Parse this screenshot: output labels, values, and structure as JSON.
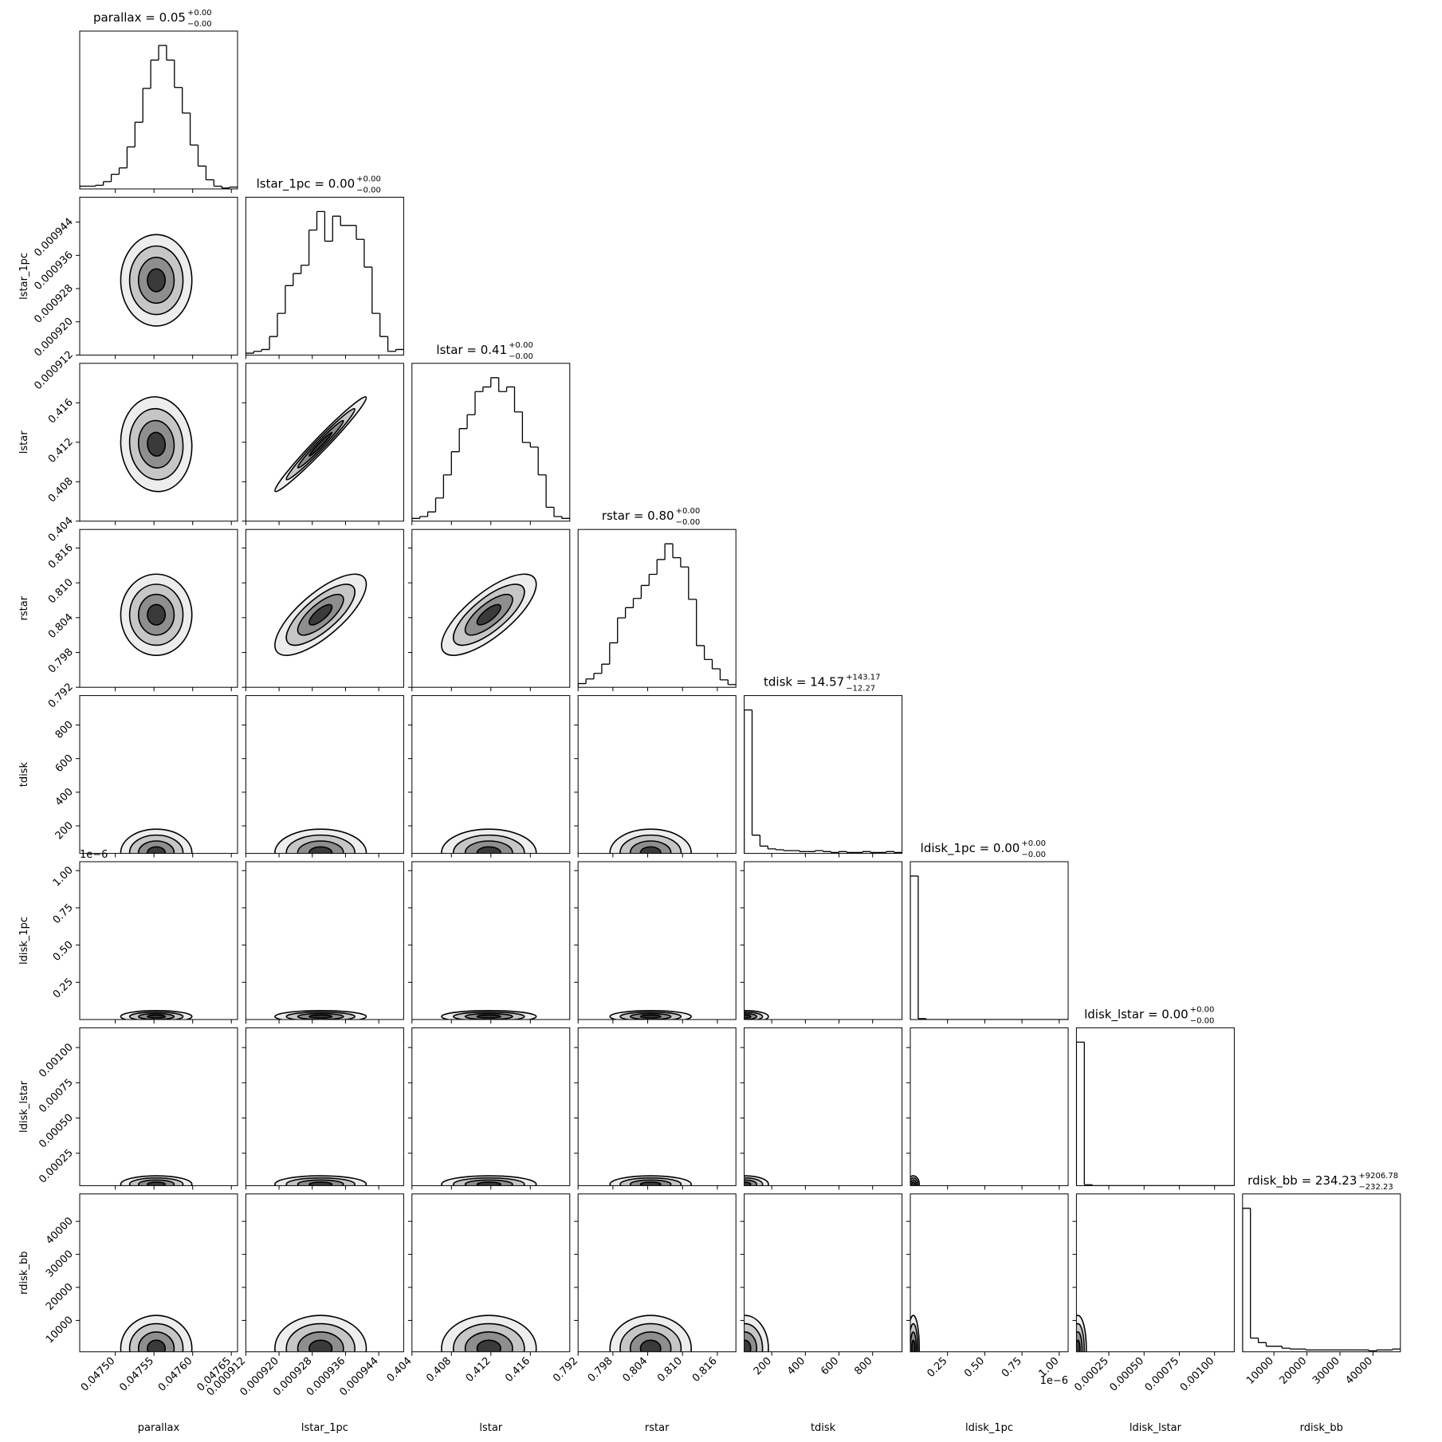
{
  "chart_data": {
    "type": "corner",
    "color": "#000000",
    "params": [
      {
        "name": "parallax",
        "title": "parallax = 0.05",
        "title_sup": "+0.00",
        "title_sub": "−0.00",
        "lim": [
          0.047454,
          0.047658
        ],
        "ticks": [
          {
            "value": 0.0475,
            "label": "0.04750"
          },
          0.04755,
          {
            "value": 0.0476,
            "label": "0.04760"
          },
          0.04765
        ],
        "median": 0.047553,
        "sigma": 2.3e-05,
        "bins": [
          0.047454,
          0.0474642,
          0.0474744,
          0.0474846,
          0.0474948,
          0.047505,
          0.0475152,
          0.0475254,
          0.0475356,
          0.0475458,
          0.047556,
          0.0475662,
          0.0475764,
          0.0475866,
          0.0475968,
          0.047607,
          0.0476172,
          0.0476274,
          0.0476376,
          0.0476478,
          0.047658
        ],
        "counts": [
          3,
          3,
          4,
          8,
          16,
          23,
          46,
          73,
          110,
          141,
          157,
          141,
          111,
          83,
          48,
          25,
          10,
          3,
          1,
          2
        ]
      },
      {
        "name": "lstar_1pc",
        "title": "lstar_1pc = 0.00",
        "title_sup": "+0.00",
        "title_sub": "−0.00",
        "lim": [
          0.000912,
          0.00095
        ],
        "ticks": [
          0.000912,
          {
            "value": 0.00092,
            "label": "0.000920"
          },
          0.000928,
          0.000936,
          0.000944
        ],
        "median": 0.00093,
        "sigma": 5.5e-06,
        "bins": [
          0.000912,
          0.0009139,
          0.0009158,
          0.0009177,
          0.0009196,
          0.0009215,
          0.0009234,
          0.0009253,
          0.0009272,
          0.0009291,
          0.000931,
          0.0009329,
          0.0009348,
          0.0009367,
          0.0009386,
          0.0009405,
          0.0009424,
          0.0009443,
          0.0009462,
          0.0009481,
          0.00095
        ],
        "counts": [
          2,
          4,
          6,
          20,
          45,
          75,
          88,
          97,
          135,
          155,
          123,
          150,
          140,
          140,
          125,
          95,
          45,
          20,
          4,
          6
        ]
      },
      {
        "name": "lstar",
        "title": "lstar = 0.41",
        "title_sup": "+0.00",
        "title_sub": "−0.00",
        "lim": [
          0.404,
          0.42
        ],
        "ticks": [
          0.404,
          0.408,
          0.412,
          0.416
        ],
        "median": 0.4118,
        "sigma": 0.0024,
        "bins": [
          0.404,
          0.4048,
          0.4056,
          0.4064,
          0.4072,
          0.408,
          0.4088,
          0.4096,
          0.4104,
          0.4112,
          0.412,
          0.4128,
          0.4136,
          0.4144,
          0.4152,
          0.416,
          0.4168,
          0.4176,
          0.4184,
          0.4192,
          0.42
        ],
        "counts": [
          3,
          5,
          10,
          25,
          50,
          75,
          100,
          115,
          140,
          145,
          155,
          140,
          145,
          118,
          85,
          80,
          50,
          15,
          5,
          3
        ]
      },
      {
        "name": "rstar",
        "title": "rstar = 0.80",
        "title_sup": "+0.00",
        "title_sub": "−0.00",
        "lim": [
          0.792,
          0.8192
        ],
        "ticks": [
          0.792,
          0.798,
          0.804,
          {
            "value": 0.81,
            "label": "0.810"
          },
          0.816
        ],
        "median": 0.8045,
        "sigma": 0.0035,
        "bins": [
          0.792,
          0.79336,
          0.79472,
          0.79608,
          0.79744,
          0.7988,
          0.80016,
          0.80152,
          0.80288,
          0.80424,
          0.8056,
          0.80696,
          0.80832,
          0.80968,
          0.81104,
          0.8124,
          0.81376,
          0.81512,
          0.81648,
          0.81784,
          0.8192
        ],
        "counts": [
          4,
          9,
          15,
          25,
          48,
          75,
          86,
          96,
          110,
          122,
          138,
          155,
          140,
          130,
          95,
          45,
          30,
          20,
          8,
          3
        ]
      },
      {
        "name": "tdisk",
        "title": "tdisk = 14.57",
        "title_sup": "+143.17",
        "title_sub": "−12.27",
        "lim": [
          36,
          975
        ],
        "ticks": [
          200,
          400,
          600,
          800
        ],
        "median": 40,
        "sigma": 70,
        "bins": [
          36,
          82.95,
          129.9,
          176.85,
          223.8,
          270.75,
          317.7,
          364.65,
          411.6,
          458.55,
          505.5,
          552.45,
          599.4,
          646.35,
          693.3,
          740.25,
          787.2,
          834.15,
          881.1,
          928.05,
          975
        ],
        "counts": [
          157,
          20,
          8,
          5,
          4,
          3,
          3,
          2,
          2,
          3,
          2,
          1,
          2,
          1,
          1,
          2,
          1,
          1,
          2,
          1
        ]
      },
      {
        "name": "ldisk_1pc",
        "title": "ldisk_1pc = 0.00",
        "title_sup": "+0.00",
        "title_sub": "−0.00",
        "lim": [
          0,
          1.06
        ],
        "ticks": [
          0.25,
          {
            "value": 0.5,
            "label": "0.50"
          },
          0.75,
          {
            "value": 1,
            "label": "1.00"
          }
        ],
        "offset_label": "1e−6",
        "median": 0.02,
        "sigma": 0.02,
        "bins": [
          0,
          0.053,
          0.106,
          0.159,
          0.212,
          0.265,
          0.318,
          0.371,
          0.424,
          0.477,
          0.53,
          0.583,
          0.636,
          0.689,
          0.742,
          0.795,
          0.848,
          0.901,
          0.954,
          1.007,
          1.06
        ],
        "counts": [
          157,
          1,
          0,
          0,
          0,
          0,
          0,
          0,
          0,
          0,
          0,
          0,
          0,
          0,
          0,
          0,
          0,
          0,
          0,
          0
        ]
      },
      {
        "name": "ldisk_lstar",
        "title": "ldisk_lstar = 0.00",
        "title_sup": "+0.00",
        "title_sub": "−0.00",
        "lim": [
          2e-05,
          0.00114
        ],
        "ticks": [
          0.00025,
          {
            "value": 0.0005,
            "label": "0.00050"
          },
          0.00075,
          {
            "value": 0.001,
            "label": "0.00100"
          }
        ],
        "median": 3e-05,
        "sigma": 3e-05,
        "bins": [
          2e-05,
          7.6e-05,
          0.000132,
          0.000188,
          0.000244,
          0.0003,
          0.000356,
          0.000412,
          0.000468,
          0.000524,
          0.00058,
          0.000636,
          0.000692,
          0.000748,
          0.000804,
          0.00086,
          0.000916,
          0.000972,
          0.001028,
          0.001084,
          0.00114
        ],
        "counts": [
          157,
          1,
          0,
          0,
          0,
          0,
          0,
          0,
          0,
          0,
          0,
          0,
          0,
          0,
          0,
          0,
          0,
          0,
          0,
          0
        ]
      },
      {
        "name": "rdisk_bb",
        "title": "rdisk_bb = 234.23",
        "title_sup": "+9206.78",
        "title_sub": "−232.23",
        "lim": [
          500,
          48300
        ],
        "ticks": [
          10000,
          20000,
          30000,
          40000
        ],
        "median": 1500,
        "sigma": 5000,
        "bins": [
          500,
          2890,
          5280,
          7670,
          10060,
          12450,
          14840,
          17230,
          19620,
          22010,
          24400,
          26790,
          29180,
          31570,
          33960,
          36350,
          38740,
          41130,
          43520,
          45910,
          48300
        ],
        "counts": [
          157,
          15,
          10,
          6,
          6,
          4,
          3,
          3,
          2,
          2,
          2,
          2,
          2,
          2,
          2,
          2,
          1,
          2,
          2,
          3
        ]
      }
    ],
    "correlation": [
      [
        0
      ],
      [
        -0.05,
        0.98
      ],
      [
        0,
        0.75,
        0.75
      ],
      [
        0,
        0,
        0,
        0
      ],
      [
        0,
        0,
        0,
        0,
        0
      ],
      [
        0,
        0,
        0,
        0,
        0,
        0
      ],
      [
        0,
        0,
        0,
        0,
        0,
        0,
        0
      ]
    ]
  }
}
